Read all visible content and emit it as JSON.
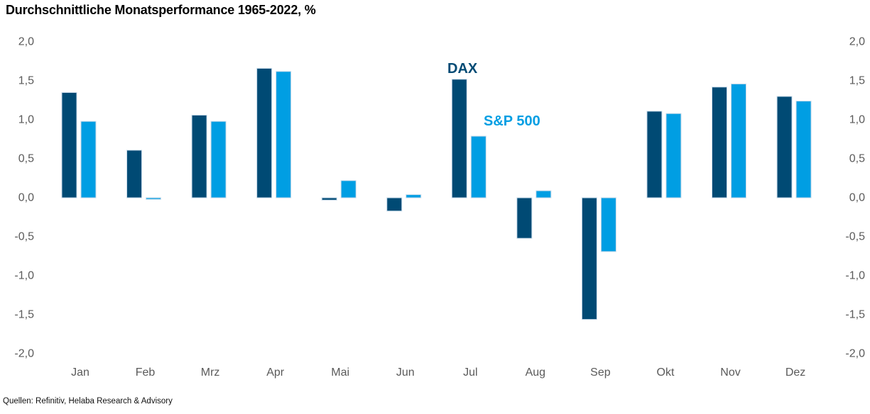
{
  "title": "Durchschnittliche Monatsperformance 1965-2022, %",
  "source": "Quellen: Refinitiv, Helaba Research & Advisory",
  "colors": {
    "dax": "#004a74",
    "sp500": "#009ee3",
    "bar_border": "#c9daea",
    "axis_text": "#5a5a5a",
    "title_text": "#000000"
  },
  "chart_data": {
    "type": "bar",
    "title": "Durchschnittliche Monatsperformance 1965-2022, %",
    "xlabel": "",
    "ylabel": "%",
    "categories": [
      "Jan",
      "Feb",
      "Mrz",
      "Apr",
      "Mai",
      "Jun",
      "Jul",
      "Aug",
      "Sep",
      "Okt",
      "Nov",
      "Dez"
    ],
    "series": [
      {
        "name": "DAX",
        "color_key": "dax",
        "values": [
          1.35,
          0.61,
          1.06,
          1.66,
          -0.03,
          -0.17,
          1.52,
          -0.52,
          -1.56,
          1.11,
          1.42,
          1.3
        ]
      },
      {
        "name": "S&P 500",
        "color_key": "sp500",
        "values": [
          0.98,
          -0.02,
          0.98,
          1.62,
          0.22,
          0.04,
          0.79,
          0.09,
          -0.69,
          1.08,
          1.46,
          1.24
        ]
      }
    ],
    "ylim": [
      -2.0,
      2.0
    ],
    "ytick_step": 0.5,
    "ytick_labels": [
      "2,0",
      "1,5",
      "1,0",
      "0,5",
      "0,0",
      "-0,5",
      "-1,0",
      "-1,5",
      "-2,0"
    ],
    "grid": false,
    "axis_lines": false,
    "legend_position": "inline annotations near Jul bars",
    "duplicate_y_axis_right": true
  }
}
